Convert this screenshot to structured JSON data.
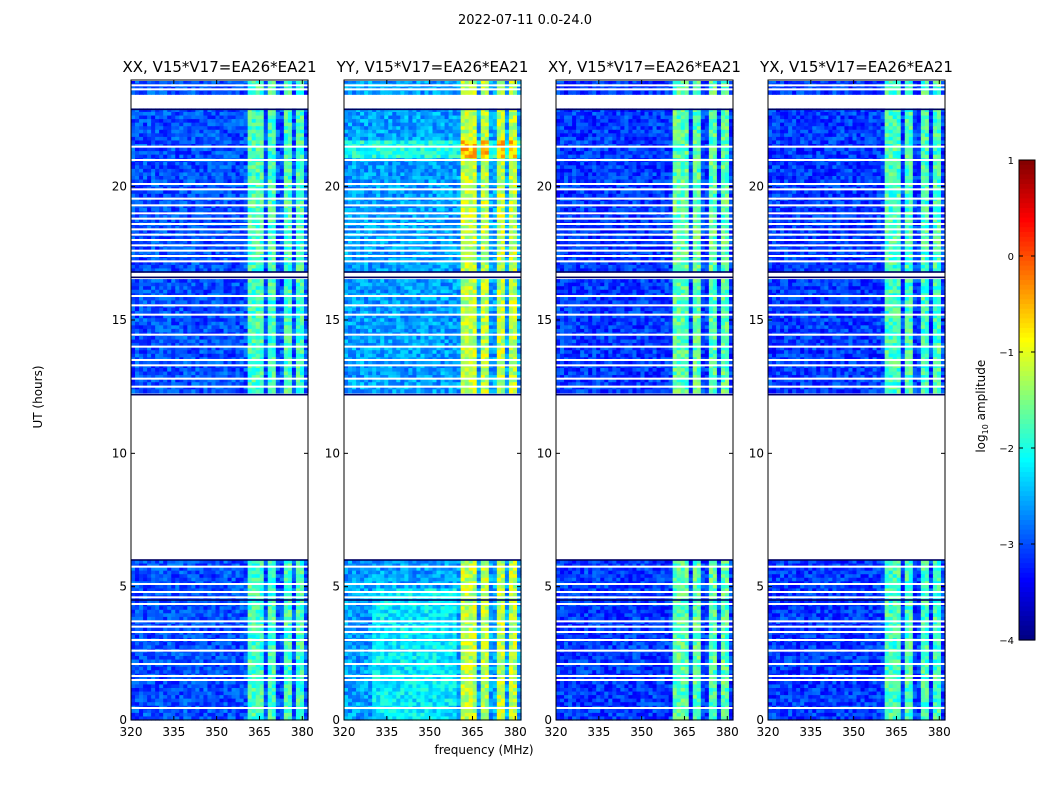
{
  "suptitle": "2022-07-11 0.0-24.0",
  "colorbar_label": "log",
  "colorbar_label_sub": "10",
  "colorbar_label_rest": " amplitude",
  "colorbar_ticks": [
    "1",
    "0",
    "−1",
    "−2",
    "−3",
    "−4"
  ],
  "colors": {
    "cmap": "jet",
    "flag": "#ffffff"
  },
  "chart_data": {
    "type": "heatmap",
    "xlabel": "frequency (MHz)",
    "ylabel": "UT (hours)",
    "xlim": [
      320,
      382
    ],
    "ylim": [
      0,
      24
    ],
    "xticks": [
      "320",
      "335",
      "350",
      "365",
      "380"
    ],
    "yticks": [
      "0",
      "5",
      "10",
      "15",
      "20"
    ],
    "colorbar_range": [
      -4,
      1
    ],
    "rfi_bands_mhz": [
      [
        361,
        366
      ],
      [
        368,
        371
      ],
      [
        373,
        377
      ],
      [
        378,
        381
      ]
    ],
    "flagged_hour_ranges": [
      [
        6.0,
        12.2
      ],
      [
        16.6,
        16.8
      ],
      [
        22.9,
        23.5
      ]
    ],
    "panels": [
      {
        "title": "XX, V15*V17=EA26*EA21",
        "base_log_amp": -3.0,
        "rfi_log_amp": -1.8
      },
      {
        "title": "YY, V15*V17=EA26*EA21",
        "base_log_amp": -2.6,
        "rfi_log_amp": -1.2
      },
      {
        "title": "XY, V15*V17=EA26*EA21",
        "base_log_amp": -3.1,
        "rfi_log_amp": -1.7
      },
      {
        "title": "YX, V15*V17=EA26*EA21",
        "base_log_amp": -3.1,
        "rfi_log_amp": -1.8
      }
    ]
  }
}
